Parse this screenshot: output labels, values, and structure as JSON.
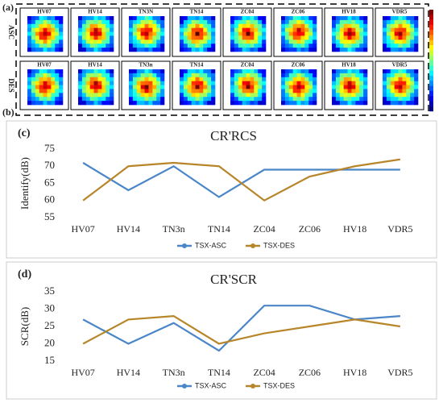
{
  "panel_a": {
    "label_a": "(a)",
    "label_b": "(b)",
    "row_labels": [
      "ASC",
      "DES"
    ],
    "top_row": [
      "HV07",
      "HV14",
      "TN3N",
      "TN14",
      "ZC04",
      "ZC06",
      "HV18",
      "VDR5"
    ],
    "bottom_row": [
      "HV07",
      "HV14",
      "TN3n",
      "TN14",
      "ZC04",
      "ZC06",
      "HV18",
      "VDR5"
    ]
  },
  "chart_data": [
    {
      "type": "line",
      "panel": "(c)",
      "title": "CR'RCS",
      "y_label": "Identify(dB)",
      "categories": [
        "HV07",
        "HV14",
        "TN3n",
        "TN14",
        "ZC04",
        "ZC06",
        "HV18",
        "VDR5"
      ],
      "series": [
        {
          "name": "TSX-ASC",
          "color": "#4a86c8",
          "values": [
            71,
            63,
            70,
            61,
            69,
            69,
            69,
            69
          ]
        },
        {
          "name": "TSX-DES",
          "color": "#b8862a",
          "values": [
            60,
            70,
            71,
            70,
            60,
            67,
            70,
            72
          ]
        }
      ],
      "ylim": [
        55,
        75
      ],
      "yticks": [
        55,
        60,
        65,
        70,
        75
      ],
      "grid": false
    },
    {
      "type": "line",
      "panel": "(d)",
      "title": "CR'SCR",
      "y_label": "SCR(dB)",
      "categories": [
        "HV07",
        "HV14",
        "TN3n",
        "TN14",
        "ZC04",
        "ZC06",
        "HV18",
        "VDR5"
      ],
      "series": [
        {
          "name": "TSX-ASC",
          "color": "#4a86c8",
          "values": [
            27,
            20,
            26,
            18,
            31,
            31,
            27,
            28
          ]
        },
        {
          "name": "TSX-DES",
          "color": "#b8862a",
          "values": [
            20,
            27,
            28,
            20,
            23,
            25,
            27,
            25
          ]
        }
      ],
      "ylim": [
        15,
        35
      ],
      "yticks": [
        15,
        20,
        25,
        30,
        35
      ],
      "grid": false
    }
  ]
}
